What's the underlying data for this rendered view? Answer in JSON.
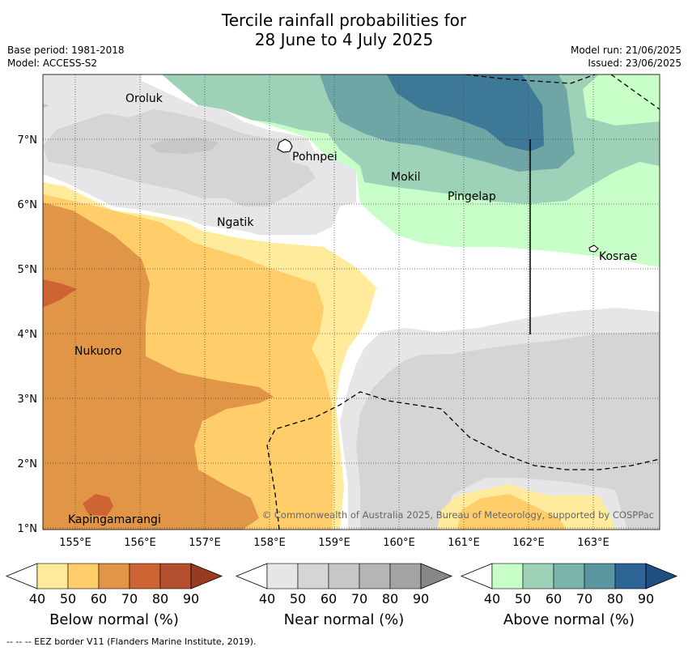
{
  "title_line1": "Tercile rainfall probabilities for",
  "title_line2": "28 June to 4 July 2025",
  "meta_left": [
    "Base period: 1981-2018",
    "Model: ACCESS-S2"
  ],
  "meta_right": [
    "Model run: 21/06/2025",
    "Issued: 23/06/2025"
  ],
  "map": {
    "lon_labels": [
      "155°E",
      "156°E",
      "157°E",
      "158°E",
      "159°E",
      "160°E",
      "161°E",
      "162°E",
      "163°E"
    ],
    "lat_labels": [
      "7°N",
      "6°N",
      "5°N",
      "4°N",
      "3°N",
      "2°N",
      "1°N"
    ],
    "places": [
      "Oroluk",
      "Pohnpei",
      "Mokil",
      "Pingelap",
      "Ngatik",
      "Kosrae",
      "Nukuoro",
      "Kapingamarangi"
    ],
    "copyright": "© Commonwealth of Australia 2025, Bureau of Meteorology, supported by COSPPac",
    "category_colors": {
      "near_normal": [
        "#e6e6e6",
        "#d5d5d5",
        "#c7c7c7"
      ],
      "above_normal": [
        "#c8ffc8",
        "#9ed2b8",
        "#6ea6a6",
        "#3d7896"
      ],
      "below_normal": [
        "#ffeb9b",
        "#ffcd69",
        "#e09646",
        "#cd6432"
      ]
    }
  },
  "colorbars": [
    {
      "title": "Below normal (%)",
      "labels": [
        "40",
        "50",
        "60",
        "70",
        "80",
        "90"
      ],
      "colors": [
        "#ffeb9b",
        "#ffcd69",
        "#e09646",
        "#cd6432",
        "#b4502d",
        "#993b23"
      ]
    },
    {
      "title": "Near normal (%)",
      "labels": [
        "40",
        "50",
        "60",
        "70",
        "80",
        "90"
      ],
      "colors": [
        "#e6e6e6",
        "#d5d5d5",
        "#c7c7c7",
        "#b5b5b5",
        "#a3a3a3",
        "#878787"
      ]
    },
    {
      "title": "Above normal (%)",
      "labels": [
        "40",
        "50",
        "60",
        "70",
        "80",
        "90"
      ],
      "colors": [
        "#c8ffc8",
        "#9ed2b8",
        "#7ab4aa",
        "#5a96a0",
        "#2d6496",
        "#1e4e82"
      ]
    }
  ],
  "footer": "-- -- -- EEZ border V11 (Flanders Marine Institute, 2019)."
}
